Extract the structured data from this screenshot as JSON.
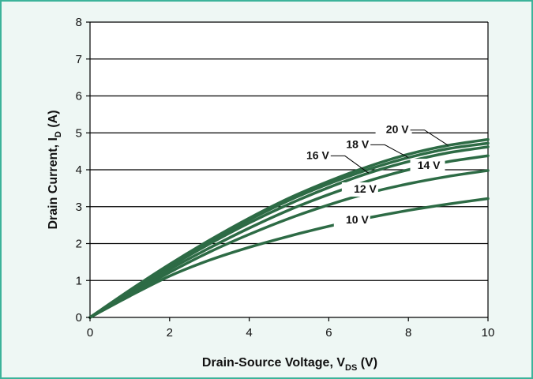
{
  "chart_data": {
    "type": "line",
    "xlabel_main": "Drain-Source Voltage, V",
    "xlabel_sub": "DS",
    "xlabel_unit": " (V)",
    "ylabel_main": "Drain Current, I",
    "ylabel_sub": "D",
    "ylabel_unit": " (A)",
    "xlim": [
      0,
      10
    ],
    "ylim": [
      0,
      8
    ],
    "xticks": [
      0,
      2,
      4,
      6,
      8,
      10
    ],
    "yticks": [
      0,
      1,
      2,
      3,
      4,
      5,
      6,
      7,
      8
    ],
    "grid": "horizontal",
    "line_color": "#2d6b45",
    "x": [
      0,
      1,
      2,
      3,
      4,
      5,
      6,
      7,
      8,
      9,
      10
    ],
    "series": [
      {
        "name": "10 V",
        "values": [
          0,
          0.58,
          1.12,
          1.55,
          1.9,
          2.2,
          2.47,
          2.7,
          2.9,
          3.07,
          3.22
        ],
        "label_at": [
          7.0,
          2.55
        ]
      },
      {
        "name": "12 V",
        "values": [
          0,
          0.62,
          1.22,
          1.77,
          2.25,
          2.68,
          3.05,
          3.37,
          3.62,
          3.82,
          3.98
        ],
        "label_at": [
          7.2,
          3.38
        ]
      },
      {
        "name": "14 V",
        "values": [
          0,
          0.66,
          1.3,
          1.88,
          2.42,
          2.91,
          3.33,
          3.7,
          4.0,
          4.22,
          4.38
        ],
        "label_at": [
          8.8,
          4.02
        ]
      },
      {
        "name": "16 V",
        "values": [
          0,
          0.7,
          1.37,
          1.99,
          2.56,
          3.07,
          3.52,
          3.91,
          4.22,
          4.46,
          4.62
        ],
        "label_at": [
          7.0,
          3.82
        ]
      },
      {
        "name": "18 V",
        "values": [
          0,
          0.72,
          1.41,
          2.05,
          2.64,
          3.17,
          3.62,
          4.01,
          4.33,
          4.57,
          4.72
        ],
        "label_at": [
          8.0,
          4.12
        ]
      },
      {
        "name": "20 V",
        "values": [
          0,
          0.74,
          1.44,
          2.09,
          2.69,
          3.23,
          3.69,
          4.09,
          4.42,
          4.66,
          4.82
        ],
        "label_at": [
          9.0,
          4.52
        ]
      }
    ],
    "label_positions": {
      "10 V": "left-of-curve",
      "12 V": "left-of-curve",
      "14 V": "right",
      "16 V": "left-with-leader",
      "18 V": "left-with-leader",
      "20 V": "left-with-leader"
    }
  }
}
